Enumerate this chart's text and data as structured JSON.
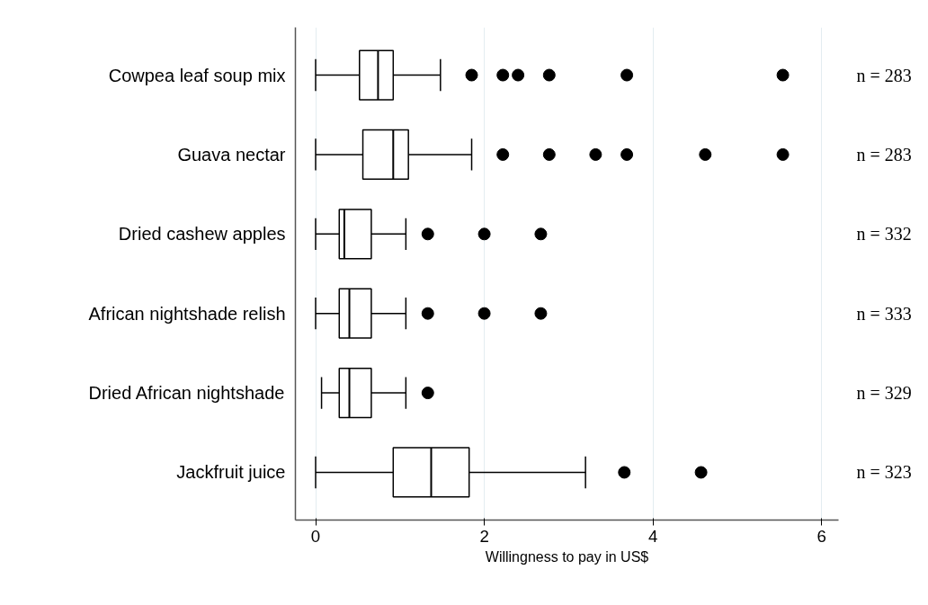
{
  "chart_data": {
    "type": "box",
    "orientation": "horizontal",
    "xlabel": "Willingness to pay in US$",
    "categories": [
      "Cowpea leaf soup mix",
      "Guava nectar",
      "Dried cashew apples",
      "African nightshade relish",
      "Dried African nightshade",
      "Jackfruit juice"
    ],
    "boxes": [
      {
        "low": 0,
        "q1": 0.52,
        "median": 0.74,
        "q3": 0.92,
        "high": 1.48,
        "outliers": [
          1.85,
          2.22,
          2.4,
          2.77,
          3.69,
          5.54
        ]
      },
      {
        "low": 0,
        "q1": 0.56,
        "median": 0.92,
        "q3": 1.1,
        "high": 1.85,
        "outliers": [
          2.22,
          2.77,
          3.32,
          3.69,
          4.62,
          5.54
        ]
      },
      {
        "low": 0,
        "q1": 0.28,
        "median": 0.34,
        "q3": 0.66,
        "high": 1.07,
        "outliers": [
          1.33,
          2.0,
          2.67
        ]
      },
      {
        "low": 0,
        "q1": 0.28,
        "median": 0.4,
        "q3": 0.66,
        "high": 1.07,
        "outliers": [
          1.33,
          2.0,
          2.67
        ]
      },
      {
        "low": 0.07,
        "q1": 0.28,
        "median": 0.4,
        "q3": 0.66,
        "high": 1.07,
        "outliers": [
          1.33
        ]
      },
      {
        "low": 0,
        "q1": 0.92,
        "median": 1.37,
        "q3": 1.82,
        "high": 3.2,
        "outliers": [
          3.66,
          4.57
        ]
      }
    ],
    "color": "#ffffff",
    "xlim": [
      -0.24,
      6.2
    ],
    "xticks": [
      0,
      2,
      4,
      6
    ],
    "grid": "x",
    "annotations": [
      "n = 283",
      "n = 283",
      "n = 332",
      "n = 333",
      "n = 329",
      "n = 323"
    ]
  }
}
